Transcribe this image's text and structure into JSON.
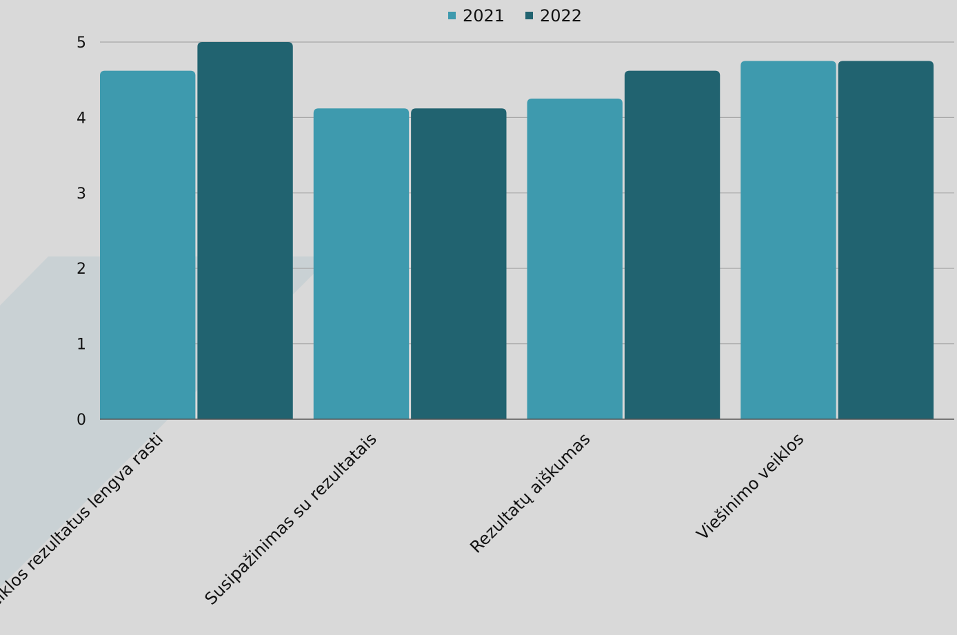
{
  "chart_data": {
    "type": "bar",
    "title": "",
    "xlabel": "",
    "ylabel": "",
    "categories": [
      "Veiklos rezultatus lengva rasti",
      "Susipažinimas su rezultatais",
      "Rezultatų aiškumas",
      "Viešinimo veiklos"
    ],
    "series": [
      {
        "name": "2021",
        "color": "#3e9aae",
        "values": [
          4.62,
          4.12,
          4.25,
          4.75
        ]
      },
      {
        "name": "2022",
        "color": "#216370",
        "values": [
          5.0,
          4.12,
          4.62,
          4.75
        ]
      }
    ],
    "ylim": [
      0,
      5
    ],
    "yticks": [
      0,
      1,
      2,
      3,
      4,
      5
    ],
    "grid": true,
    "legend": "top-center",
    "background_color": "#d9d9d9",
    "decoration_color": "#c9d1d4"
  }
}
